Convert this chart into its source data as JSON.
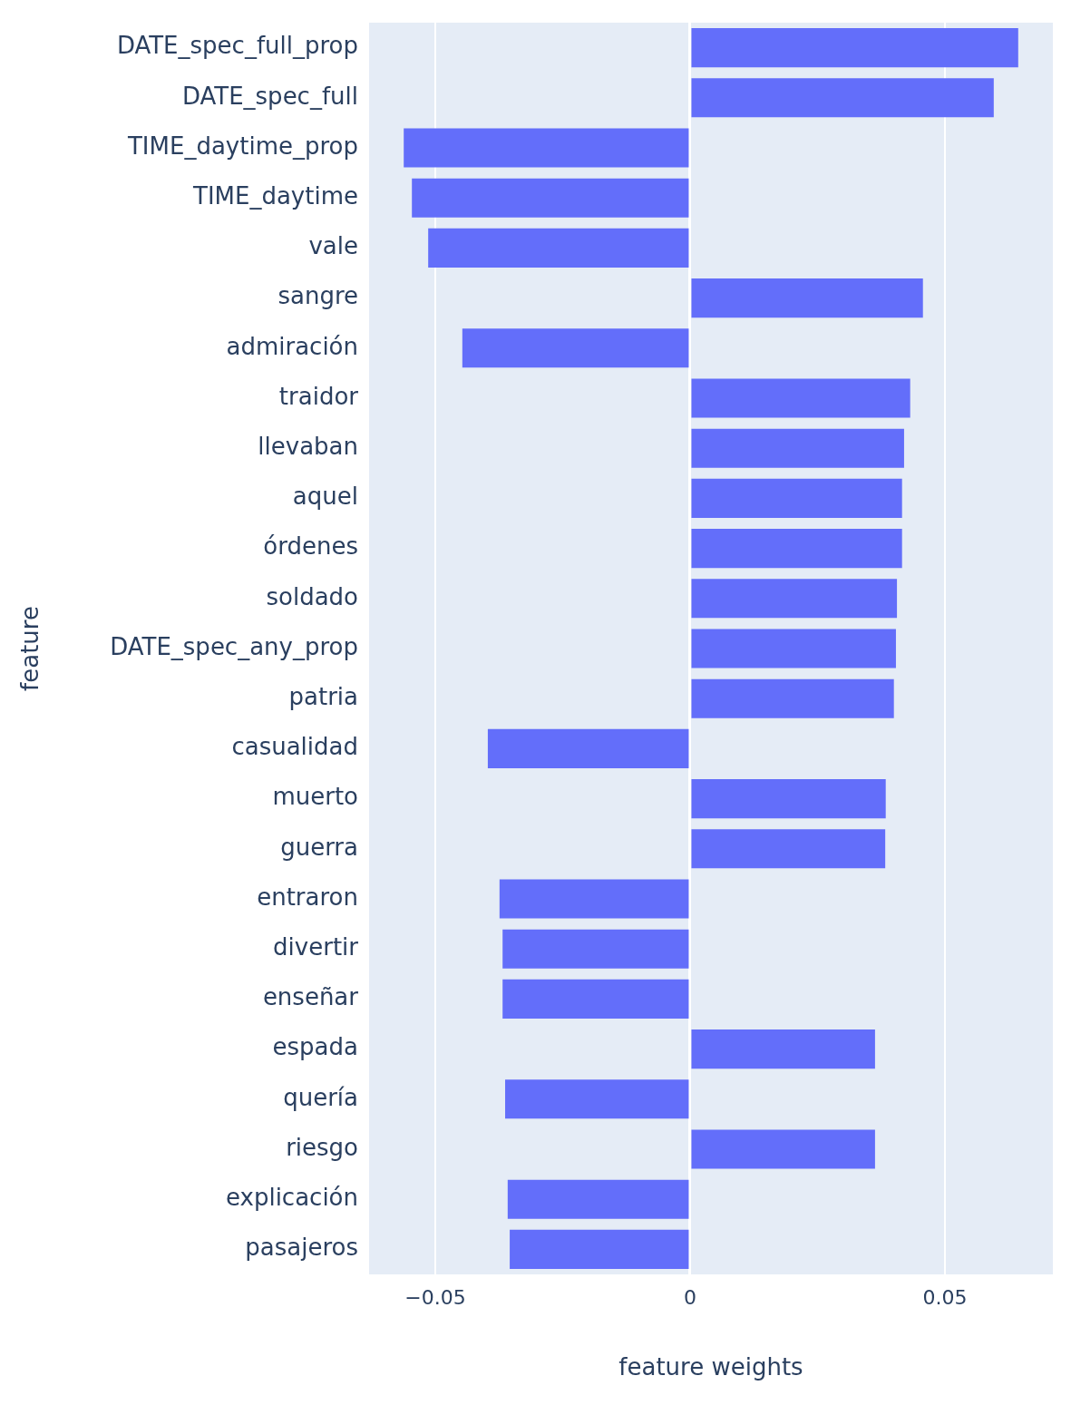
{
  "chart_data": {
    "type": "bar",
    "orientation": "horizontal",
    "xlabel": "feature weights",
    "ylabel": "feature",
    "categories": [
      "DATE_spec_full_prop",
      "DATE_spec_full",
      "TIME_daytime_prop",
      "TIME_daytime",
      "vale",
      "sangre",
      "admiración",
      "traidor",
      "llevaban",
      "aquel",
      "órdenes",
      "soldado",
      "DATE_spec_any_prop",
      "patria",
      "casualidad",
      "muerto",
      "guerra",
      "entraron",
      "divertir",
      "enseñar",
      "espada",
      "quería",
      "riesgo",
      "explicación",
      "pasajeros"
    ],
    "values": [
      0.0644,
      0.0596,
      -0.0562,
      -0.0546,
      -0.0514,
      0.0457,
      -0.0447,
      0.0432,
      0.042,
      0.0416,
      0.0416,
      0.0406,
      0.0404,
      0.04,
      -0.0397,
      0.0384,
      0.0383,
      -0.0374,
      -0.0368,
      -0.0368,
      0.0363,
      -0.0363,
      0.0363,
      -0.0358,
      -0.0354
    ],
    "color": "#636efa",
    "xlim": [
      -0.063,
      0.0712
    ],
    "xticks": [
      {
        "value": -0.05,
        "label": "−0.05"
      },
      0,
      0.05
    ],
    "grid": "x"
  }
}
